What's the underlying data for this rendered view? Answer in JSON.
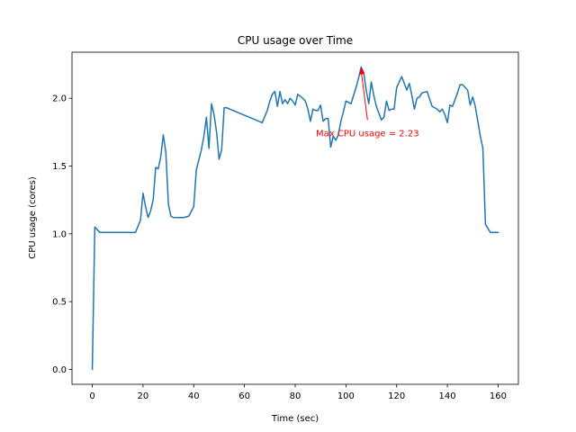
{
  "chart_data": {
    "type": "line",
    "title": "CPU usage over Time",
    "xlabel": "Time (sec)",
    "ylabel": "CPU usage (cores)",
    "xlim": [
      -8,
      168
    ],
    "ylim": [
      -0.11,
      2.34
    ],
    "xticks": [
      0,
      20,
      40,
      60,
      80,
      100,
      120,
      140,
      160
    ],
    "yticks": [
      0.0,
      0.5,
      1.0,
      1.5,
      2.0
    ],
    "ytick_labels": [
      "0.0",
      "0.5",
      "1.0",
      "1.5",
      "2.0"
    ],
    "grid": false,
    "line_color": "#1f77b4",
    "series": [
      {
        "x": [
          0,
          1,
          3,
          6,
          8,
          9,
          10,
          12,
          14,
          16,
          17,
          19,
          20,
          21,
          22,
          23,
          24,
          25,
          26,
          27,
          28,
          29,
          30,
          31,
          32,
          34,
          36,
          38,
          40,
          41,
          43,
          44,
          45,
          46,
          47,
          48,
          49,
          50,
          51,
          52,
          53,
          67,
          69,
          70,
          71,
          72,
          73,
          74,
          75,
          76,
          77,
          78,
          79,
          80,
          81,
          83,
          84,
          85,
          86,
          87,
          88,
          89,
          90,
          91,
          92,
          93,
          94,
          95,
          96,
          97,
          98,
          99,
          100,
          102,
          104,
          105,
          106,
          107,
          108,
          109,
          110,
          111,
          112,
          114,
          115,
          116,
          117,
          118,
          119,
          120,
          122,
          124,
          125,
          126,
          127,
          128,
          129,
          130,
          132,
          134,
          135,
          136,
          137,
          138,
          139,
          140,
          141,
          142,
          143,
          144,
          145,
          146,
          147,
          148,
          149,
          150,
          151,
          152,
          153,
          154,
          155,
          156,
          157,
          160
        ],
        "y": [
          0.0,
          1.05,
          1.01,
          1.01,
          1.01,
          1.01,
          1.01,
          1.01,
          1.01,
          1.01,
          1.01,
          1.1,
          1.3,
          1.2,
          1.12,
          1.17,
          1.25,
          1.49,
          1.48,
          1.57,
          1.73,
          1.6,
          1.22,
          1.13,
          1.12,
          1.12,
          1.12,
          1.13,
          1.2,
          1.47,
          1.62,
          1.72,
          1.86,
          1.63,
          1.96,
          1.88,
          1.75,
          1.55,
          1.62,
          1.93,
          1.93,
          1.82,
          1.91,
          1.98,
          2.03,
          2.05,
          1.94,
          2.05,
          1.96,
          1.99,
          1.96,
          2.0,
          1.98,
          1.95,
          2.03,
          2.0,
          1.98,
          1.92,
          1.83,
          1.92,
          1.91,
          1.91,
          1.95,
          1.83,
          1.85,
          1.85,
          1.64,
          1.72,
          1.69,
          1.73,
          1.83,
          1.9,
          1.98,
          1.96,
          2.08,
          2.15,
          2.23,
          2.19,
          2.06,
          1.96,
          2.12,
          2.02,
          1.94,
          1.84,
          1.86,
          1.98,
          1.91,
          1.92,
          1.92,
          2.08,
          2.16,
          2.06,
          2.11,
          2.02,
          1.92,
          2.0,
          2.01,
          2.04,
          2.05,
          1.94,
          1.93,
          1.92,
          1.9,
          1.92,
          1.88,
          1.82,
          1.95,
          1.94,
          1.99,
          2.04,
          2.1,
          2.1,
          2.08,
          2.06,
          1.95,
          2.01,
          1.94,
          1.83,
          1.72,
          1.63,
          1.07,
          1.04,
          1.01,
          1.01
        ]
      }
    ],
    "annotation": {
      "text": "Max CPU usage = 2.23",
      "x": 106,
      "y": 2.23,
      "text_x": 108.5,
      "text_y": 1.84,
      "color": "#ff0000"
    }
  }
}
